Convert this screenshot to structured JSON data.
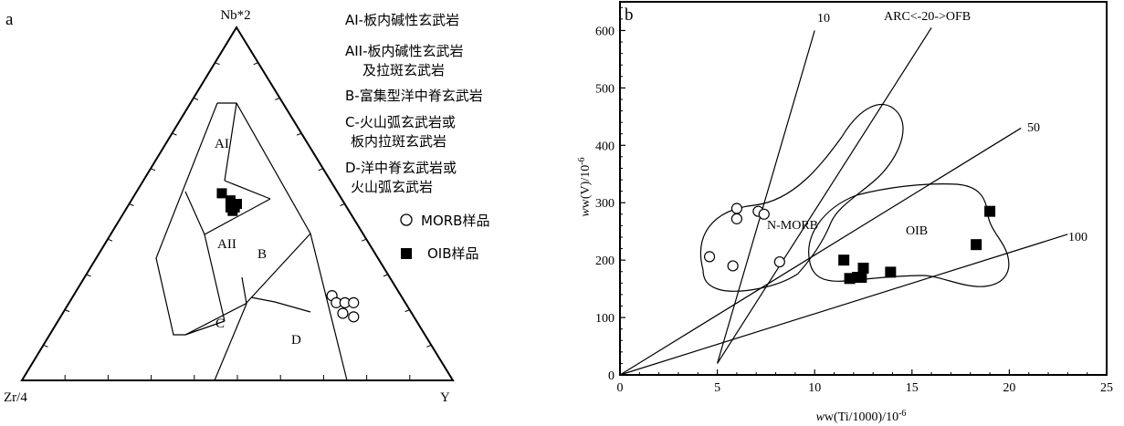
{
  "panel_a": {
    "label": "a",
    "vertex_top": "Nb*2",
    "vertex_left": "Zr/4",
    "vertex_right": "Y",
    "field_labels": {
      "AI": "AI",
      "AII": "AII",
      "B": "B",
      "C": "C",
      "D": "D"
    },
    "legend_lines": [
      "AI-板内碱性玄武岩",
      "AII-板内碱性玄武岩",
      "及拉斑玄武岩",
      "B-富集型洋中脊玄武岩",
      "C-火山弧玄武岩或",
      "板内拉斑玄武岩",
      "D-洋中脊玄武岩或",
      "火山弧玄武岩"
    ],
    "marker_legend": {
      "morb": "MORB样品",
      "oib": "OIB样品"
    }
  },
  "panel_b": {
    "label": "b",
    "xlabel_main": "w(Ti/1000)/10",
    "xlabel_exp": "-6",
    "ylabel_main": "w(V)/10",
    "ylabel_exp": "-6",
    "line_labels": {
      "l10": "10",
      "l20": "ARC<-20->OFB",
      "l50": "50",
      "l100": "100"
    },
    "field_labels": {
      "nmorb": "N-MORB",
      "oib": "OIB"
    }
  },
  "chart_data": [
    {
      "type": "scatter",
      "title": "",
      "plot": "ternary",
      "axes": [
        "Nb*2",
        "Zr/4",
        "Y"
      ],
      "series": [
        {
          "name": "MORB样品",
          "marker": "open-circle",
          "points": [
            {
              "nb2": 0.24,
              "zr4": 0.16,
              "y": 0.6
            },
            {
              "nb2": 0.22,
              "zr4": 0.16,
              "y": 0.62
            },
            {
              "nb2": 0.22,
              "zr4": 0.14,
              "y": 0.64
            },
            {
              "nb2": 0.22,
              "zr4": 0.12,
              "y": 0.66
            },
            {
              "nb2": 0.19,
              "zr4": 0.16,
              "y": 0.65
            },
            {
              "nb2": 0.18,
              "zr4": 0.14,
              "y": 0.68
            }
          ]
        },
        {
          "name": "OIB样品",
          "marker": "filled-square",
          "points": [
            {
              "nb2": 0.53,
              "zr4": 0.27,
              "y": 0.2
            },
            {
              "nb2": 0.51,
              "zr4": 0.26,
              "y": 0.23
            },
            {
              "nb2": 0.5,
              "zr4": 0.25,
              "y": 0.25
            },
            {
              "nb2": 0.49,
              "zr4": 0.27,
              "y": 0.24
            },
            {
              "nb2": 0.49,
              "zr4": 0.26,
              "y": 0.25
            },
            {
              "nb2": 0.48,
              "zr4": 0.27,
              "y": 0.25
            }
          ]
        }
      ]
    },
    {
      "type": "scatter",
      "title": "",
      "xlabel": "w(Ti/1000)/10-6",
      "ylabel": "w(V)/10-6",
      "xlim": [
        0,
        25
      ],
      "ylim": [
        0,
        650
      ],
      "xticks": [
        0,
        5,
        10,
        15,
        20,
        25
      ],
      "yticks": [
        0,
        100,
        200,
        300,
        400,
        500,
        600
      ],
      "series": [
        {
          "name": "MORB样品",
          "marker": "open-circle",
          "points": [
            {
              "x": 6.0,
              "y": 290
            },
            {
              "x": 6.0,
              "y": 272
            },
            {
              "x": 7.1,
              "y": 285
            },
            {
              "x": 7.4,
              "y": 280
            },
            {
              "x": 4.6,
              "y": 206
            },
            {
              "x": 5.8,
              "y": 190
            },
            {
              "x": 8.2,
              "y": 197
            }
          ]
        },
        {
          "name": "OIB样品",
          "marker": "filled-square",
          "points": [
            {
              "x": 11.5,
              "y": 200
            },
            {
              "x": 11.8,
              "y": 168
            },
            {
              "x": 12.2,
              "y": 170
            },
            {
              "x": 12.4,
              "y": 170
            },
            {
              "x": 12.5,
              "y": 186
            },
            {
              "x": 13.9,
              "y": 179
            },
            {
              "x": 18.3,
              "y": 227
            },
            {
              "x": 19.0,
              "y": 285
            }
          ]
        }
      ],
      "reference_lines": [
        {
          "label": "10",
          "from": {
            "x": 5.0,
            "y": 20
          },
          "to": {
            "x": 10.0,
            "y": 600
          }
        },
        {
          "label": "ARC<-20->OFB",
          "from": {
            "x": 5.0,
            "y": 20
          },
          "to": {
            "x": 16.0,
            "y": 605
          }
        },
        {
          "label": "50",
          "from": {
            "x": 0,
            "y": 0
          },
          "to": {
            "x": 20.6,
            "y": 430
          }
        },
        {
          "label": "100",
          "from": {
            "x": 0,
            "y": 0
          },
          "to": {
            "x": 23.0,
            "y": 245
          }
        }
      ],
      "fields": [
        "N-MORB",
        "OIB"
      ]
    }
  ]
}
